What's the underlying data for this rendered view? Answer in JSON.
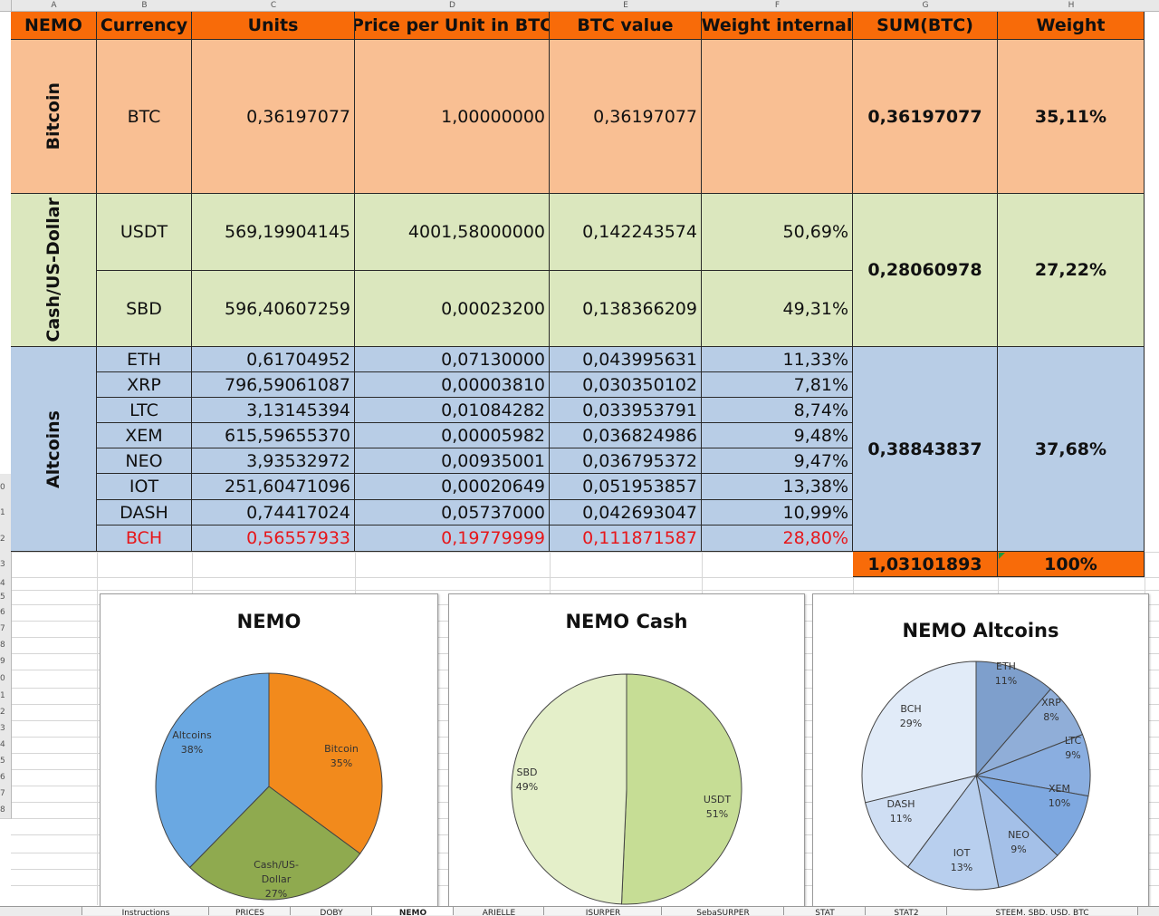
{
  "column_letters": [
    "A",
    "B",
    "C",
    "D",
    "E",
    "F",
    "G",
    "H"
  ],
  "headers": [
    "NEMO",
    "Currency",
    "Units",
    "Price per Unit in BTC",
    "BTC value",
    "Weight internal",
    "SUM(BTC)",
    "Weight"
  ],
  "groups": {
    "bitcoin": {
      "label": "Bitcoin",
      "sum": "0,36197077",
      "weight": "35,11%"
    },
    "cash": {
      "label": "Cash/US-Dollar",
      "sum": "0,28060978",
      "weight": "27,22%"
    },
    "altcoins": {
      "label": "Altcoins",
      "sum": "0,38843837",
      "weight": "37,68%"
    }
  },
  "rows": [
    {
      "currency": "BTC",
      "units": "0,36197077",
      "price": "1,00000000",
      "btc_value": "0,36197077",
      "weight_internal": ""
    },
    {
      "currency": "USDT",
      "units": "569,19904145",
      "price": "4001,58000000",
      "btc_value": "0,142243574",
      "weight_internal": "50,69%"
    },
    {
      "currency": "SBD",
      "units": "596,40607259",
      "price": "0,00023200",
      "btc_value": "0,138366209",
      "weight_internal": "49,31%"
    },
    {
      "currency": "ETH",
      "units": "0,61704952",
      "price": "0,07130000",
      "btc_value": "0,043995631",
      "weight_internal": "11,33%"
    },
    {
      "currency": "XRP",
      "units": "796,59061087",
      "price": "0,00003810",
      "btc_value": "0,030350102",
      "weight_internal": "7,81%"
    },
    {
      "currency": "LTC",
      "units": "3,13145394",
      "price": "0,01084282",
      "btc_value": "0,033953791",
      "weight_internal": "8,74%"
    },
    {
      "currency": "XEM",
      "units": "615,59655370",
      "price": "0,00005982",
      "btc_value": "0,036824986",
      "weight_internal": "9,48%"
    },
    {
      "currency": "NEO",
      "units": "3,93532972",
      "price": "0,00935001",
      "btc_value": "0,036795372",
      "weight_internal": "9,47%"
    },
    {
      "currency": "IOT",
      "units": "251,60471096",
      "price": "0,00020649",
      "btc_value": "0,051953857",
      "weight_internal": "13,38%"
    },
    {
      "currency": "DASH",
      "units": "0,74417024",
      "price": "0,05737000",
      "btc_value": "0,042693047",
      "weight_internal": "10,99%"
    },
    {
      "currency": "BCH",
      "units": "0,56557933",
      "price": "0,19779999",
      "btc_value": "0,111871587",
      "weight_internal": "28,80%"
    }
  ],
  "totals": {
    "sum": "1,03101893",
    "weight": "100%"
  },
  "row_numbers": [
    "0",
    "1",
    "2",
    "3",
    "4",
    "5",
    "6",
    "7",
    "8",
    "9",
    "0",
    "1",
    "2",
    "3",
    "4",
    "5",
    "6",
    "7",
    "8"
  ],
  "colors": {
    "header": "#f86b09",
    "bitcoin": "#f9bf93",
    "cash": "#dbe7be",
    "altcoins": "#b8cde6",
    "highlight_text": "#e6171b"
  },
  "chart_data": [
    {
      "type": "pie",
      "title": "NEMO",
      "slices": [
        {
          "label": "Bitcoin",
          "pct_label": "35%",
          "value": 35.11,
          "color": "#f28a1c"
        },
        {
          "label": "Cash/US-Dollar",
          "pct_label": "27%",
          "value": 27.22,
          "color": "#8faa4f"
        },
        {
          "label": "Altcoins",
          "pct_label": "38%",
          "value": 37.68,
          "color": "#6aa8e2"
        }
      ]
    },
    {
      "type": "pie",
      "title": "NEMO Cash",
      "slices": [
        {
          "label": "USDT",
          "pct_label": "51%",
          "value": 50.69,
          "color": "#c6dd95"
        },
        {
          "label": "SBD",
          "pct_label": "49%",
          "value": 49.31,
          "color": "#e4efc9"
        }
      ]
    },
    {
      "type": "pie",
      "title": "NEMO Altcoins",
      "slices": [
        {
          "label": "ETH",
          "pct_label": "11%",
          "value": 11.33,
          "color": "#7e9fcc"
        },
        {
          "label": "XRP",
          "pct_label": "8%",
          "value": 7.81,
          "color": "#90aed8"
        },
        {
          "label": "LTC",
          "pct_label": "9%",
          "value": 8.74,
          "color": "#8aaee0"
        },
        {
          "label": "XEM",
          "pct_label": "10%",
          "value": 9.48,
          "color": "#7ea8e0"
        },
        {
          "label": "NEO",
          "pct_label": "9%",
          "value": 9.47,
          "color": "#a4c0e8"
        },
        {
          "label": "IOT",
          "pct_label": "13%",
          "value": 13.38,
          "color": "#b8cfee"
        },
        {
          "label": "DASH",
          "pct_label": "11%",
          "value": 10.99,
          "color": "#cfdef3"
        },
        {
          "label": "BCH",
          "pct_label": "29%",
          "value": 28.8,
          "color": "#e1ebf8"
        }
      ]
    }
  ],
  "sheet_tabs": [
    "Instructions",
    "PRICES",
    "DOBY",
    "NEMO",
    "ARIELLE",
    "JSURPER",
    "SebaSURPER",
    "STAT",
    "STAT2",
    "STEEM, SBD, USD, BTC"
  ]
}
